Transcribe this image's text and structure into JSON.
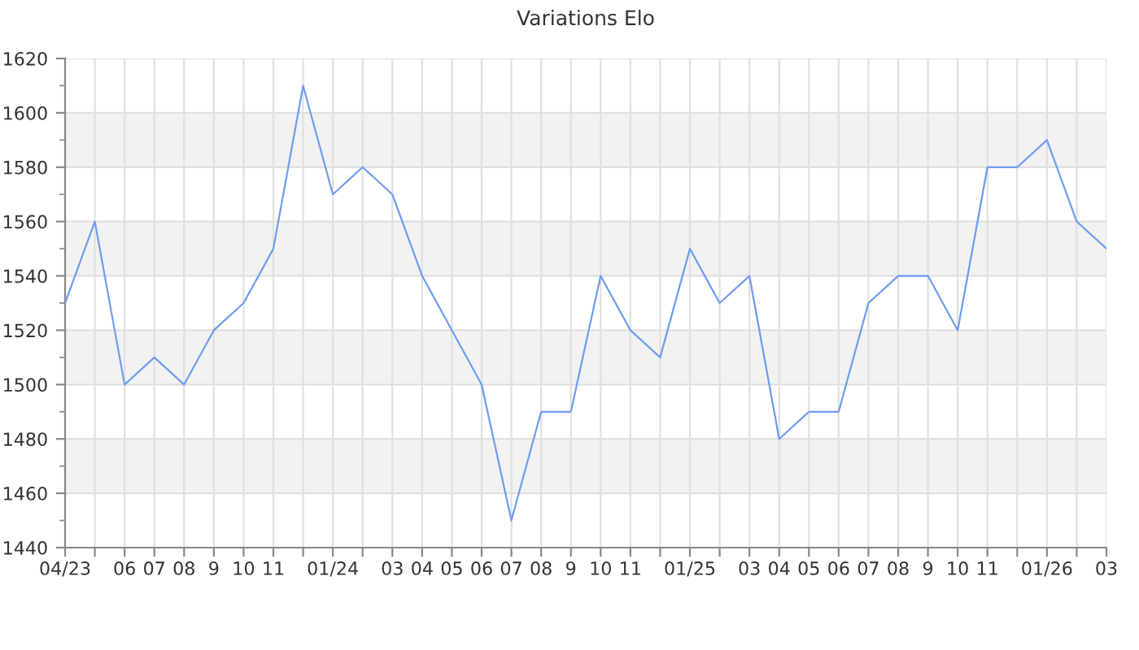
{
  "chart_data": {
    "type": "line",
    "title": "Variations Elo",
    "categories": [
      "04/23",
      null,
      "06",
      "07",
      "08",
      "9",
      "10",
      "11",
      null,
      "01/24",
      null,
      "03",
      "04",
      "05",
      "06",
      "07",
      "08",
      "9",
      "10",
      "11",
      null,
      "01/25",
      null,
      "03",
      "04",
      "05",
      "06",
      "07",
      "08",
      "9",
      "10",
      "11",
      null,
      "01/26",
      null,
      "03"
    ],
    "values": [
      1530,
      1560,
      1500,
      1510,
      1500,
      1520,
      1530,
      1550,
      1610,
      1570,
      1580,
      1570,
      1540,
      1520,
      1500,
      1450,
      1490,
      1490,
      1540,
      1520,
      1510,
      1550,
      1530,
      1540,
      1480,
      1490,
      1490,
      1530,
      1540,
      1540,
      1520,
      1580,
      1580,
      1590,
      1560,
      1550
    ],
    "color": "#6f9cef",
    "line_style": "solid",
    "ylim": [
      1440,
      1620
    ],
    "yticks": [
      1440,
      1460,
      1480,
      1500,
      1520,
      1540,
      1560,
      1580,
      1600,
      1620
    ],
    "grid": true,
    "bands": [
      {
        "axis": "y",
        "from": 1460,
        "to": 1480,
        "color": "#f2f2f2"
      },
      {
        "axis": "y",
        "from": 1500,
        "to": 1520,
        "color": "#f2f2f2"
      },
      {
        "axis": "y",
        "from": 1540,
        "to": 1560,
        "color": "#f2f2f2"
      },
      {
        "axis": "y",
        "from": 1580,
        "to": 1600,
        "color": "#f2f2f2"
      }
    ]
  }
}
